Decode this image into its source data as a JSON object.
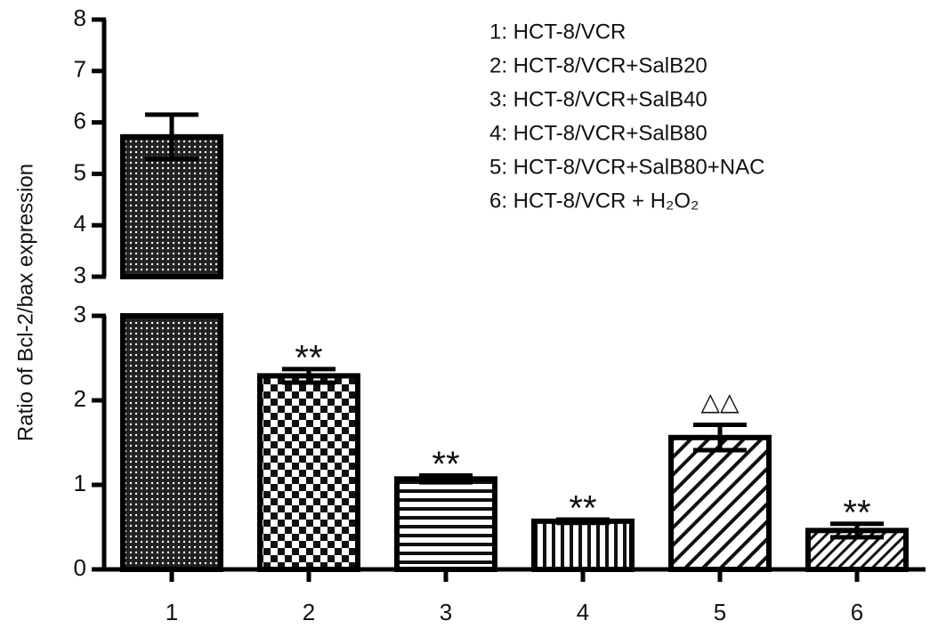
{
  "chart_data": {
    "type": "bar",
    "y_label": "Ratio of Bcl-2/bax expression",
    "categories": [
      "1",
      "2",
      "3",
      "4",
      "5",
      "6"
    ],
    "values": [
      5.72,
      2.29,
      1.07,
      0.57,
      1.56,
      0.46
    ],
    "errors": [
      0.43,
      0.08,
      0.04,
      0.02,
      0.15,
      0.08
    ],
    "annotations": [
      null,
      "**",
      "**",
      "**",
      "△△",
      "**"
    ],
    "legend": [
      "1: HCT-8/VCR",
      "2: HCT-8/VCR+SalB20",
      "3: HCT-8/VCR+SalB40",
      "4: HCT-8/VCR+SalB80",
      "5: HCT-8/VCR+SalB80+NAC",
      "6: HCT-8/VCR + H₂O₂"
    ],
    "y_segments": [
      {
        "ylim": [
          0,
          3
        ],
        "yticks": [
          0,
          1,
          2,
          3
        ]
      },
      {
        "ylim": [
          3,
          8
        ],
        "yticks": [
          3,
          4,
          5,
          6,
          7,
          8
        ]
      }
    ],
    "color": "#000000"
  }
}
